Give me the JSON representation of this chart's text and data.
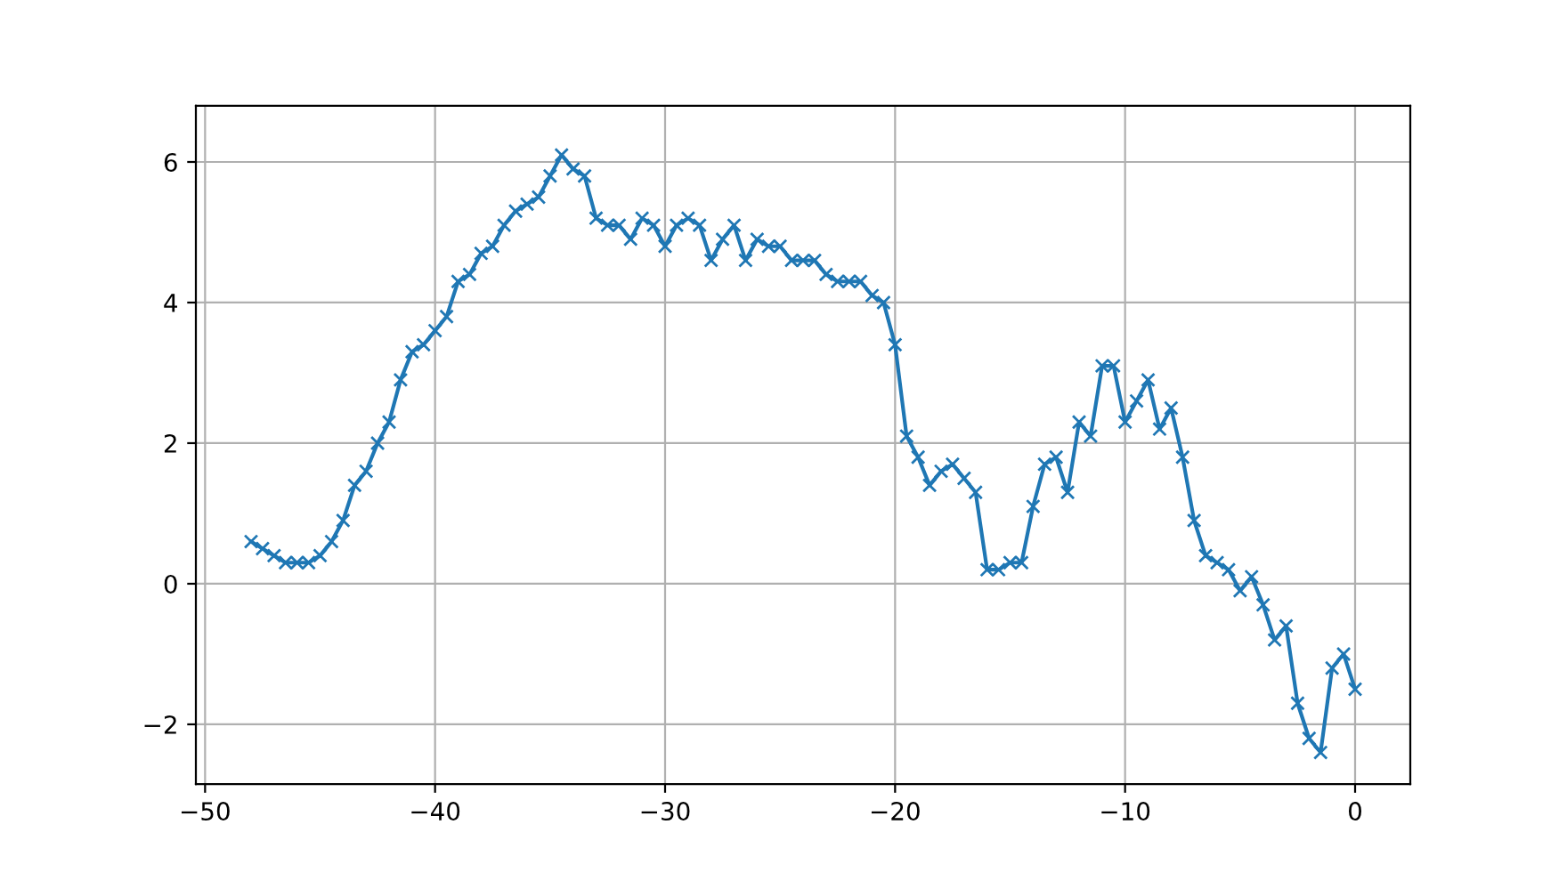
{
  "chart_data": {
    "type": "line",
    "marker": "cross",
    "grid": true,
    "xlim": [
      -50.4,
      2.4
    ],
    "ylim": [
      -2.85,
      6.8
    ],
    "xticks": [
      {
        "value": -50,
        "label": "−50"
      },
      {
        "value": -40,
        "label": "−40"
      },
      {
        "value": -30,
        "label": "−30"
      },
      {
        "value": -20,
        "label": "−20"
      },
      {
        "value": -10,
        "label": "−10"
      },
      0
    ],
    "yticks": [
      {
        "value": -2,
        "label": "−2"
      },
      0,
      2,
      4,
      6
    ],
    "series": [
      {
        "color": "#1f77b4",
        "x": [
          -48,
          -47.5,
          -47,
          -46.5,
          -46,
          -45.5,
          -45,
          -44.5,
          -44,
          -43.5,
          -43,
          -42.5,
          -42,
          -41.5,
          -41,
          -40.5,
          -40,
          -39.5,
          -39,
          -38.5,
          -38,
          -37.5,
          -37,
          -36.5,
          -36,
          -35.5,
          -35,
          -34.5,
          -34,
          -33.5,
          -33,
          -32.5,
          -32,
          -31.5,
          -31,
          -30.5,
          -30,
          -29.5,
          -29,
          -28.5,
          -28,
          -27.5,
          -27,
          -26.5,
          -26,
          -25.5,
          -25,
          -24.5,
          -24,
          -23.5,
          -23,
          -22.5,
          -22,
          -21.5,
          -21,
          -20.5,
          -20,
          -19.5,
          -19,
          -18.5,
          -18,
          -17.5,
          -17,
          -16.5,
          -16,
          -15.5,
          -15,
          -14.5,
          -14,
          -13.5,
          -13,
          -12.5,
          -12,
          -11.5,
          -11,
          -10.5,
          -10,
          -9.5,
          -9,
          -8.5,
          -8,
          -7.5,
          -7,
          -6.5,
          -6,
          -5.5,
          -5,
          -4.5,
          -4,
          -3.5,
          -3,
          -2.5,
          -2,
          -1.5,
          -1,
          -0.5,
          0
        ],
        "values": [
          0.6,
          0.5,
          0.4,
          0.3,
          0.3,
          0.3,
          0.4,
          0.6,
          0.9,
          1.4,
          1.6,
          2.0,
          2.3,
          2.9,
          3.3,
          3.4,
          3.6,
          3.8,
          4.3,
          4.4,
          4.7,
          4.8,
          5.1,
          5.3,
          5.4,
          5.5,
          5.8,
          6.1,
          5.9,
          5.8,
          5.2,
          5.1,
          5.1,
          4.9,
          5.2,
          5.1,
          4.8,
          5.1,
          5.2,
          5.1,
          4.6,
          4.9,
          5.1,
          4.6,
          4.9,
          4.8,
          4.8,
          4.6,
          4.6,
          4.6,
          4.4,
          4.3,
          4.3,
          4.3,
          4.1,
          4.0,
          3.4,
          2.1,
          1.8,
          1.4,
          1.6,
          1.7,
          1.5,
          1.3,
          0.2,
          0.2,
          0.3,
          0.3,
          1.1,
          1.7,
          1.8,
          1.3,
          2.3,
          2.1,
          3.1,
          3.1,
          2.3,
          2.6,
          2.9,
          2.2,
          2.5,
          1.8,
          0.9,
          0.4,
          0.3,
          0.2,
          -0.1,
          0.1,
          -0.3,
          -0.8,
          -0.6,
          -1.7,
          -2.2,
          -2.4,
          -1.2,
          -1.0,
          -1.5
        ]
      }
    ]
  }
}
